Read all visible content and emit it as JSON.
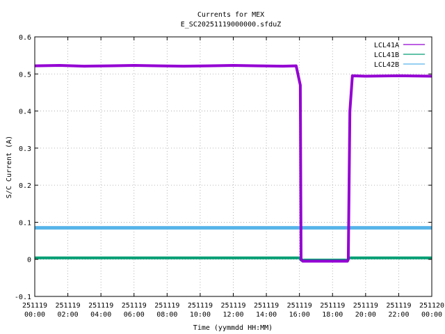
{
  "chart_data": {
    "type": "line",
    "title": "Currents for MEX",
    "subtitle": "E_SC20251119000000.sfduZ",
    "xlabel": "Time (yymmdd HH:MM)",
    "ylabel": "S/C Current (A)",
    "xlim": [
      0,
      24
    ],
    "ylim": [
      -0.1,
      0.6
    ],
    "grid": true,
    "legend_position": "top-right",
    "y_ticks": [
      "-0.1",
      "0",
      "0.1",
      "0.2",
      "0.3",
      "0.4",
      "0.5",
      "0.6"
    ],
    "x_ticks": [
      {
        "date": "251119",
        "time": "00:00"
      },
      {
        "date": "251119",
        "time": "02:00"
      },
      {
        "date": "251119",
        "time": "04:00"
      },
      {
        "date": "251119",
        "time": "06:00"
      },
      {
        "date": "251119",
        "time": "08:00"
      },
      {
        "date": "251119",
        "time": "10:00"
      },
      {
        "date": "251119",
        "time": "12:00"
      },
      {
        "date": "251119",
        "time": "14:00"
      },
      {
        "date": "251119",
        "time": "16:00"
      },
      {
        "date": "251119",
        "time": "18:00"
      },
      {
        "date": "251119",
        "time": "20:00"
      },
      {
        "date": "251119",
        "time": "22:00"
      },
      {
        "date": "251120",
        "time": "00:00"
      }
    ],
    "series": [
      {
        "name": "LCL41A",
        "color": "#9400d3",
        "x": [
          0,
          1.5,
          3,
          4.5,
          6,
          7.5,
          9,
          10.5,
          12,
          13.5,
          15,
          15.8,
          16.0,
          16.05,
          16.1,
          16.2,
          18.9,
          18.95,
          19.05,
          19.2,
          20,
          22,
          24
        ],
        "y": [
          0.522,
          0.523,
          0.521,
          0.522,
          0.523,
          0.522,
          0.521,
          0.522,
          0.523,
          0.522,
          0.521,
          0.522,
          0.48,
          0.47,
          0.0,
          -0.005,
          -0.005,
          0.0,
          0.4,
          0.495,
          0.494,
          0.495,
          0.494
        ]
      },
      {
        "name": "LCL41B",
        "color": "#009e73",
        "x": [
          0,
          4,
          8,
          12,
          16,
          16.1,
          18.9,
          19.0,
          24
        ],
        "y": [
          0.004,
          0.004,
          0.004,
          0.004,
          0.004,
          -0.002,
          -0.002,
          0.004,
          0.004
        ]
      },
      {
        "name": "LCL42B",
        "color": "#56b4e9",
        "x": [
          0,
          6,
          12,
          18,
          24
        ],
        "y": [
          0.085,
          0.085,
          0.085,
          0.085,
          0.085
        ]
      }
    ]
  }
}
